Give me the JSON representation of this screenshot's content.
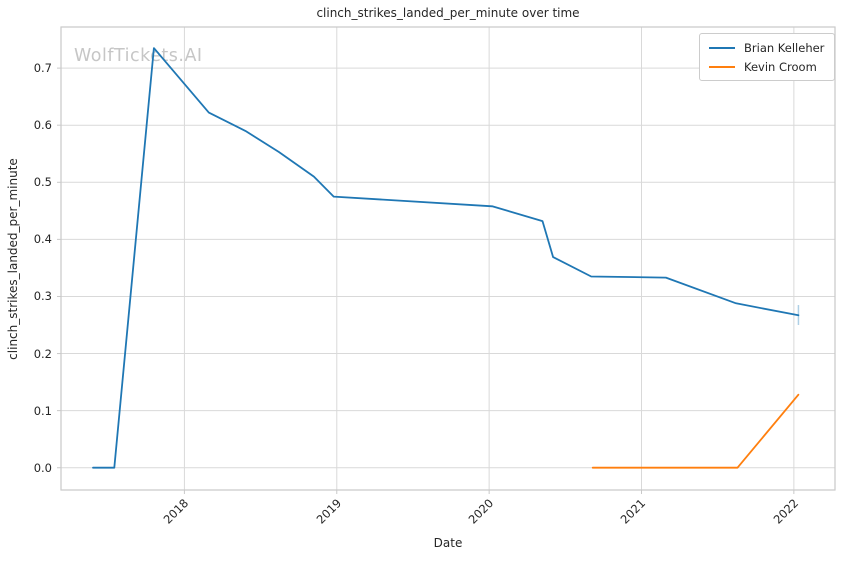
{
  "watermark": "WolfTickets.AI",
  "chart_data": {
    "type": "line",
    "title": "clinch_strikes_landed_per_minute over time",
    "xlabel": "Date",
    "ylabel": "clinch_strikes_landed_per_minute",
    "x_unit": "year",
    "xlim": [
      2017.19,
      2022.27
    ],
    "ylim": [
      -0.039,
      0.772
    ],
    "grid": true,
    "legend_position": "upper right",
    "xticks": {
      "values": [
        2018,
        2019,
        2020,
        2021,
        2022
      ],
      "labels": [
        "2018",
        "2019",
        "2020",
        "2021",
        "2022"
      ]
    },
    "yticks": {
      "values": [
        0.0,
        0.1,
        0.2,
        0.3,
        0.4,
        0.5,
        0.6,
        0.7
      ],
      "labels": [
        "0.0",
        "0.1",
        "0.2",
        "0.3",
        "0.4",
        "0.5",
        "0.6",
        "0.7"
      ]
    },
    "series": [
      {
        "name": "Brian Kelleher",
        "color": "#1f77b4",
        "x": [
          2017.4,
          2017.54,
          2017.8,
          2018.16,
          2018.4,
          2018.62,
          2018.85,
          2018.98,
          2020.02,
          2020.35,
          2020.42,
          2020.67,
          2021.16,
          2021.62,
          2022.03
        ],
        "y": [
          0.0,
          0.0,
          0.735,
          0.622,
          0.59,
          0.553,
          0.51,
          0.475,
          0.458,
          0.432,
          0.369,
          0.335,
          0.333,
          0.288,
          0.267
        ]
      },
      {
        "name": "Kevin Croom",
        "color": "#ff7f0e",
        "x": [
          2020.68,
          2021.63,
          2022.03
        ],
        "y": [
          0.0,
          0.0,
          0.128
        ]
      }
    ],
    "error_bars": [
      {
        "series": "Brian Kelleher",
        "x": 2022.03,
        "y_low": 0.25,
        "y_high": 0.285,
        "color": "#aed0e6"
      }
    ]
  },
  "colors": {
    "background": "#ffffff",
    "grid": "#d9d9d9",
    "spine": "#c9c9c9",
    "text": "#262626",
    "watermark": "#c6c6c6"
  }
}
